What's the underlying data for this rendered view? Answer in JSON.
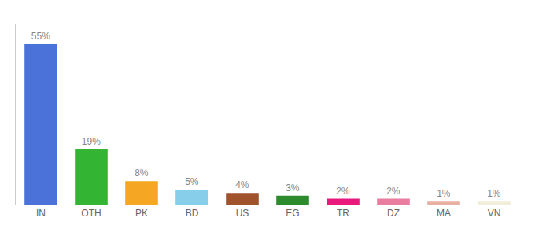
{
  "chart_data": {
    "type": "bar",
    "categories": [
      "IN",
      "OTH",
      "PK",
      "BD",
      "US",
      "EG",
      "TR",
      "DZ",
      "MA",
      "VN"
    ],
    "values": [
      55,
      19,
      8,
      5,
      4,
      3,
      2,
      2,
      1,
      1
    ],
    "value_labels": [
      "55%",
      "19%",
      "8%",
      "5%",
      "4%",
      "3%",
      "2%",
      "2%",
      "1%",
      "1%"
    ],
    "colors": [
      "#4a72d9",
      "#33b533",
      "#f5a623",
      "#87ceeb",
      "#a0522d",
      "#2d8b2d",
      "#e8197a",
      "#e87da0",
      "#e8b0a0",
      "#f0eed8"
    ],
    "data_labels": true,
    "ylim": [
      0,
      62
    ],
    "grid": false,
    "tick_labels": "x"
  }
}
